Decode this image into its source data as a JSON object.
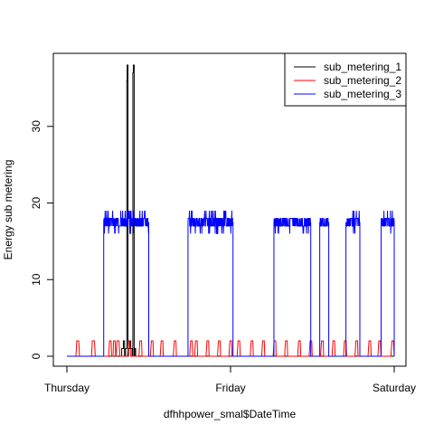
{
  "chart_data": {
    "type": "line",
    "title": "",
    "xlabel": "dfhhpower_smal$DateTime",
    "ylabel": "Energy sub metering",
    "x_ticks": [
      {
        "label": "Thursday",
        "value": 0
      },
      {
        "label": "Friday",
        "value": 1
      },
      {
        "label": "Saturday",
        "value": 2
      }
    ],
    "xlim": [
      0,
      2
    ],
    "y_ticks": [
      0,
      10,
      20,
      30
    ],
    "ylim": [
      0,
      38
    ],
    "grid": false,
    "legend_position": "top-right",
    "series": [
      {
        "name": "sub_metering_1",
        "color": "#000000",
        "points": [
          [
            0.0,
            0
          ],
          [
            0.335,
            0
          ],
          [
            0.335,
            1
          ],
          [
            0.345,
            1
          ],
          [
            0.345,
            2
          ],
          [
            0.352,
            2
          ],
          [
            0.352,
            0
          ],
          [
            0.358,
            0
          ],
          [
            0.358,
            1
          ],
          [
            0.366,
            1
          ],
          [
            0.366,
            36
          ],
          [
            0.368,
            36
          ],
          [
            0.368,
            38
          ],
          [
            0.373,
            38
          ],
          [
            0.373,
            0
          ],
          [
            0.376,
            0
          ],
          [
            0.376,
            1
          ],
          [
            0.383,
            1
          ],
          [
            0.383,
            2
          ],
          [
            0.39,
            2
          ],
          [
            0.39,
            1
          ],
          [
            0.398,
            1
          ],
          [
            0.398,
            0
          ],
          [
            0.403,
            0
          ],
          [
            0.403,
            37
          ],
          [
            0.406,
            37
          ],
          [
            0.406,
            38
          ],
          [
            0.411,
            38
          ],
          [
            0.411,
            0
          ],
          [
            0.414,
            0
          ],
          [
            0.414,
            1
          ],
          [
            0.42,
            1
          ],
          [
            0.42,
            0
          ],
          [
            2.0,
            0
          ]
        ]
      },
      {
        "name": "sub_metering_2",
        "color": "#ff0000",
        "points": [
          [
            0.0,
            0
          ],
          [
            0.055,
            0
          ],
          [
            0.058,
            1
          ],
          [
            0.06,
            2
          ],
          [
            0.072,
            2
          ],
          [
            0.075,
            1
          ],
          [
            0.077,
            0
          ],
          [
            0.15,
            0
          ],
          [
            0.153,
            1
          ],
          [
            0.155,
            2
          ],
          [
            0.168,
            2
          ],
          [
            0.171,
            1
          ],
          [
            0.173,
            0
          ],
          [
            0.255,
            0
          ],
          [
            0.258,
            1
          ],
          [
            0.26,
            2
          ],
          [
            0.27,
            2
          ],
          [
            0.273,
            0
          ],
          [
            0.282,
            0
          ],
          [
            0.285,
            2
          ],
          [
            0.295,
            2
          ],
          [
            0.298,
            0
          ],
          [
            0.3,
            0
          ],
          [
            0.303,
            1
          ],
          [
            0.306,
            2
          ],
          [
            0.318,
            2
          ],
          [
            0.321,
            1
          ],
          [
            0.324,
            0
          ],
          [
            0.37,
            0
          ],
          [
            0.373,
            1
          ],
          [
            0.376,
            2
          ],
          [
            0.386,
            2
          ],
          [
            0.389,
            0
          ],
          [
            0.44,
            0
          ],
          [
            0.443,
            1
          ],
          [
            0.446,
            2
          ],
          [
            0.456,
            2
          ],
          [
            0.459,
            0
          ],
          [
            0.51,
            0
          ],
          [
            0.513,
            1
          ],
          [
            0.516,
            2
          ],
          [
            0.526,
            2
          ],
          [
            0.529,
            0
          ],
          [
            0.57,
            0
          ],
          [
            0.573,
            1
          ],
          [
            0.576,
            2
          ],
          [
            0.586,
            2
          ],
          [
            0.589,
            0
          ],
          [
            0.65,
            0
          ],
          [
            0.653,
            1
          ],
          [
            0.656,
            2
          ],
          [
            0.666,
            2
          ],
          [
            0.669,
            0
          ],
          [
            0.75,
            0
          ],
          [
            0.753,
            1
          ],
          [
            0.756,
            2
          ],
          [
            0.766,
            2
          ],
          [
            0.769,
            0
          ],
          [
            0.78,
            0
          ],
          [
            0.783,
            1
          ],
          [
            0.786,
            2
          ],
          [
            0.796,
            2
          ],
          [
            0.799,
            0
          ],
          [
            0.85,
            0
          ],
          [
            0.853,
            1
          ],
          [
            0.856,
            2
          ],
          [
            0.866,
            2
          ],
          [
            0.869,
            0
          ],
          [
            0.92,
            0
          ],
          [
            0.923,
            1
          ],
          [
            0.926,
            2
          ],
          [
            0.936,
            2
          ],
          [
            0.939,
            0
          ],
          [
            0.99,
            0
          ],
          [
            0.993,
            1
          ],
          [
            0.996,
            2
          ],
          [
            1.006,
            2
          ],
          [
            1.009,
            0
          ],
          [
            1.04,
            0
          ],
          [
            1.043,
            1
          ],
          [
            1.046,
            2
          ],
          [
            1.056,
            2
          ],
          [
            1.059,
            0
          ],
          [
            1.12,
            0
          ],
          [
            1.123,
            1
          ],
          [
            1.126,
            2
          ],
          [
            1.136,
            2
          ],
          [
            1.139,
            0
          ],
          [
            1.19,
            0
          ],
          [
            1.193,
            1
          ],
          [
            1.196,
            2
          ],
          [
            1.206,
            2
          ],
          [
            1.209,
            0
          ],
          [
            1.26,
            0
          ],
          [
            1.263,
            1
          ],
          [
            1.266,
            2
          ],
          [
            1.276,
            2
          ],
          [
            1.279,
            0
          ],
          [
            1.33,
            0
          ],
          [
            1.333,
            1
          ],
          [
            1.336,
            2
          ],
          [
            1.346,
            2
          ],
          [
            1.349,
            0
          ],
          [
            1.41,
            0
          ],
          [
            1.413,
            1
          ],
          [
            1.416,
            2
          ],
          [
            1.426,
            2
          ],
          [
            1.429,
            0
          ],
          [
            1.48,
            0
          ],
          [
            1.483,
            1
          ],
          [
            1.486,
            2
          ],
          [
            1.496,
            2
          ],
          [
            1.499,
            0
          ],
          [
            1.55,
            0
          ],
          [
            1.553,
            1
          ],
          [
            1.556,
            2
          ],
          [
            1.566,
            2
          ],
          [
            1.569,
            0
          ],
          [
            1.62,
            0
          ],
          [
            1.623,
            1
          ],
          [
            1.626,
            2
          ],
          [
            1.636,
            2
          ],
          [
            1.639,
            0
          ],
          [
            1.69,
            0
          ],
          [
            1.693,
            1
          ],
          [
            1.696,
            2
          ],
          [
            1.706,
            2
          ],
          [
            1.709,
            0
          ],
          [
            1.76,
            0
          ],
          [
            1.763,
            1
          ],
          [
            1.766,
            2
          ],
          [
            1.776,
            2
          ],
          [
            1.779,
            0
          ],
          [
            1.84,
            0
          ],
          [
            1.843,
            1
          ],
          [
            1.846,
            2
          ],
          [
            1.856,
            2
          ],
          [
            1.859,
            0
          ],
          [
            1.9,
            0
          ],
          [
            1.903,
            1
          ],
          [
            1.906,
            2
          ],
          [
            1.916,
            2
          ],
          [
            1.919,
            0
          ],
          [
            1.98,
            0
          ],
          [
            1.983,
            1
          ],
          [
            1.986,
            2
          ],
          [
            1.996,
            2
          ],
          [
            2.0,
            0
          ]
        ]
      },
      {
        "name": "sub_metering_3",
        "color": "#0000ff",
        "blocks": [
          {
            "start": 0.225,
            "end": 0.5,
            "level": 17.5,
            "spikes": [
              19
            ],
            "dips": [
              16,
              17
            ]
          },
          {
            "start": 0.74,
            "end": 1.015,
            "level": 17.5,
            "spikes": [
              19
            ],
            "dips": [
              16,
              17
            ]
          },
          {
            "start": 1.265,
            "end": 1.49,
            "level": 17.5,
            "spikes": [
              18
            ],
            "dips": [
              16,
              17
            ]
          },
          {
            "start": 1.545,
            "end": 1.6,
            "level": 17.5,
            "spikes": [
              18
            ],
            "dips": [
              16,
              17
            ]
          },
          {
            "start": 1.705,
            "end": 1.79,
            "level": 17.5,
            "spikes": [
              19
            ],
            "dips": [
              16,
              17
            ]
          },
          {
            "start": 1.92,
            "end": 2.0,
            "level": 17.5,
            "spikes": [
              19
            ],
            "dips": [
              16,
              17
            ]
          }
        ],
        "baseline": 0
      }
    ]
  }
}
